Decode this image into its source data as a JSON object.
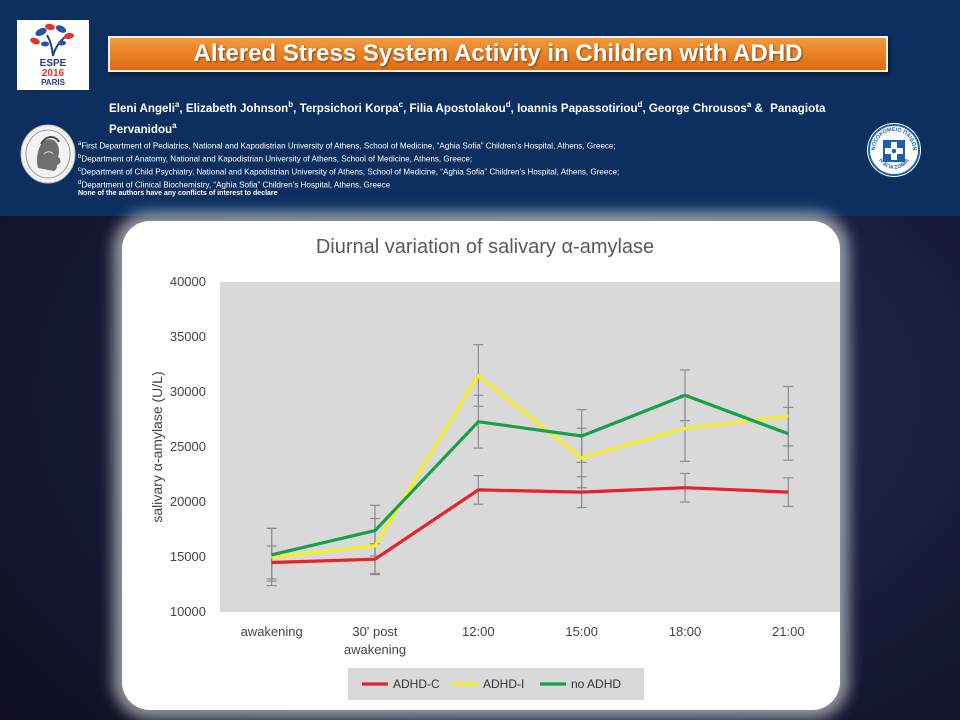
{
  "logo_left": {
    "line1": "ESPE",
    "line2": "2016",
    "line3": "PARIS"
  },
  "logo_right": {
    "arc_top": "ΝΟΣΟΚΟΜΕΙΟ ΠΑΙΔΩΝ",
    "arc_bottom": "Η ΑΓΙΑ ΣΟΦΙΑ"
  },
  "title": "Altered Stress System Activity in Children with ADHD",
  "authors": [
    {
      "name": "Eleni Angeli",
      "sup": "a"
    },
    {
      "name": "Elizabeth Johnson",
      "sup": "b"
    },
    {
      "name": "Terpsichori Korpa",
      "sup": "c"
    },
    {
      "name": "Filia Apostolakou",
      "sup": "d"
    },
    {
      "name": "Ioannis Papassotiriou",
      "sup": "d"
    },
    {
      "name": "George Chrousos",
      "sup": "a"
    },
    {
      "name": "Panagiota Pervanidou",
      "sup": "a"
    }
  ],
  "author_sep": "&",
  "affiliations": [
    {
      "sup": "a",
      "text": "First Department of Pediatrics, National and Kapodistrian University of Athens, School of Medicine, “Aghia Sofia” Children’s Hospital, Athens, Greece;"
    },
    {
      "sup": "b",
      "text": "Department of Anatomy, National and Kapodistrian University of Athens, School of Medicine, Athens, Greece;"
    },
    {
      "sup": "c",
      "text": "Department of Child Psychiatry, National and Kapodistrian University of Athens, School of Medicine, “Aghia Sofia” Children’s Hospital, Athens, Greece;"
    },
    {
      "sup": "d",
      "text": "Department of Clinical Biochemistry, “Aghia Sofia” Children’s Hospital, Athens, Greece"
    }
  ],
  "conflict": "None of the authors have any conflicts of interest to declare",
  "colors": {
    "header_bg": "#0c2f5f",
    "title_orange": "#ee7f22",
    "adhd_c": "#e8212a",
    "adhd_i": "#f5ef2b",
    "no_adhd": "#16a04c"
  },
  "chart_data": {
    "type": "line",
    "title": "Diurnal variation of salivary α-amylase",
    "ylabel": "salivary α-amylase (U/L)",
    "xlabel": "",
    "categories": [
      "awakening",
      "30' post awakening",
      "12:00",
      "15:00",
      "18:00",
      "21:00"
    ],
    "category_lines": [
      [
        "awakening"
      ],
      [
        "30' post",
        "awakening"
      ],
      [
        "12:00"
      ],
      [
        "15:00"
      ],
      [
        "18:00"
      ],
      [
        "21:00"
      ]
    ],
    "ylim": [
      10000,
      40000
    ],
    "yticks": [
      10000,
      15000,
      20000,
      25000,
      30000,
      35000,
      40000
    ],
    "grid": false,
    "legend_position": "bottom",
    "series": [
      {
        "name": "ADHD-C",
        "color": "#e8212a",
        "values": [
          14500,
          14800,
          21100,
          20900,
          21300,
          20900
        ],
        "errors": [
          1500,
          1400,
          1300,
          1400,
          1300,
          1300
        ]
      },
      {
        "name": "ADHD-I",
        "color": "#f5ef2b",
        "values": [
          15000,
          16000,
          31500,
          24000,
          26700,
          27800
        ],
        "errors": [
          2600,
          2500,
          2800,
          2700,
          3000,
          2700
        ]
      },
      {
        "name": "no ADHD",
        "color": "#16a04c",
        "values": [
          15200,
          17400,
          27300,
          26000,
          29700,
          26200
        ],
        "errors": [
          2400,
          2300,
          2400,
          2400,
          2300,
          2400
        ]
      }
    ]
  }
}
